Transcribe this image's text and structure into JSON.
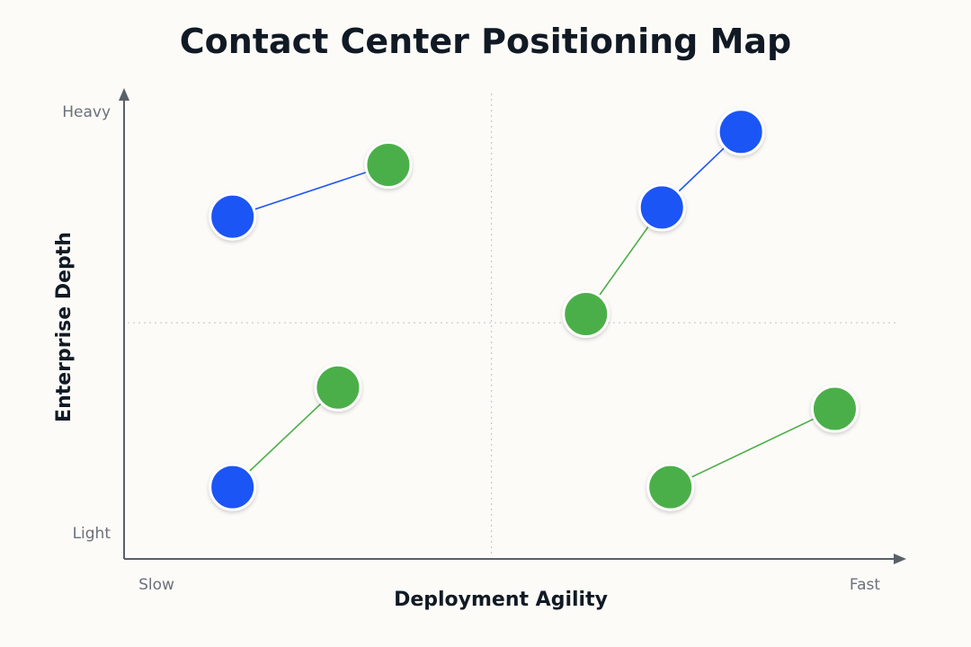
{
  "chart_data": {
    "type": "scatter",
    "title": "Contact Center Positioning Map",
    "xlabel": "Deployment Agility",
    "ylabel": "Enterprise Depth",
    "x_tick_labels": {
      "low": "Slow",
      "high": "Fast"
    },
    "y_tick_labels": {
      "low": "Light",
      "high": "Heavy"
    },
    "xlim": [
      0,
      1
    ],
    "ylim": [
      0,
      1
    ],
    "quadrant_dividers": {
      "x": 0.474,
      "y": 0.543
    },
    "grid": false,
    "colors": {
      "blue": "#1f55f5",
      "green": "#4caf48"
    },
    "points": [
      {
        "x": 0.14,
        "y": 0.787,
        "color": "blue"
      },
      {
        "x": 0.341,
        "y": 0.906,
        "color": "green"
      },
      {
        "x": 0.276,
        "y": 0.394,
        "color": "green"
      },
      {
        "x": 0.14,
        "y": 0.165,
        "color": "blue"
      },
      {
        "x": 0.596,
        "y": 0.563,
        "color": "green"
      },
      {
        "x": 0.694,
        "y": 0.808,
        "color": "blue"
      },
      {
        "x": 0.796,
        "y": 0.982,
        "color": "blue"
      },
      {
        "x": 0.705,
        "y": 0.165,
        "color": "green"
      },
      {
        "x": 0.917,
        "y": 0.345,
        "color": "green"
      }
    ],
    "connectors": [
      {
        "from": 0,
        "to": 1,
        "color": "blue"
      },
      {
        "from": 3,
        "to": 2,
        "color": "green"
      },
      {
        "from": 4,
        "to": 5,
        "color": "green"
      },
      {
        "from": 5,
        "to": 6,
        "color": "blue"
      },
      {
        "from": 7,
        "to": 8,
        "color": "green"
      }
    ]
  }
}
